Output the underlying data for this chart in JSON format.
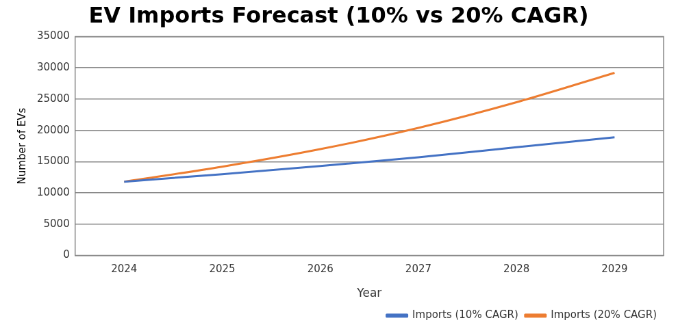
{
  "chart_data": {
    "type": "line",
    "title": "EV Imports Forecast (10% vs 20% CAGR)",
    "xlabel": "Year",
    "ylabel": "Number of EVs",
    "categories": [
      "2024",
      "2025",
      "2026",
      "2027",
      "2028",
      "2029"
    ],
    "series": [
      {
        "name": "Imports (10% CAGR)",
        "color": "#4472c4",
        "values": [
          11800,
          13000,
          14300,
          15700,
          17300,
          18900
        ]
      },
      {
        "name": "Imports (20% CAGR)",
        "color": "#ed7d31",
        "values": [
          11800,
          14200,
          17000,
          20400,
          24500,
          29200
        ]
      }
    ],
    "ylim": [
      0,
      35000
    ],
    "yticks": [
      0,
      5000,
      10000,
      15000,
      20000,
      25000,
      30000,
      35000
    ],
    "grid": "y",
    "legend": "bottom right",
    "marker": "none"
  }
}
